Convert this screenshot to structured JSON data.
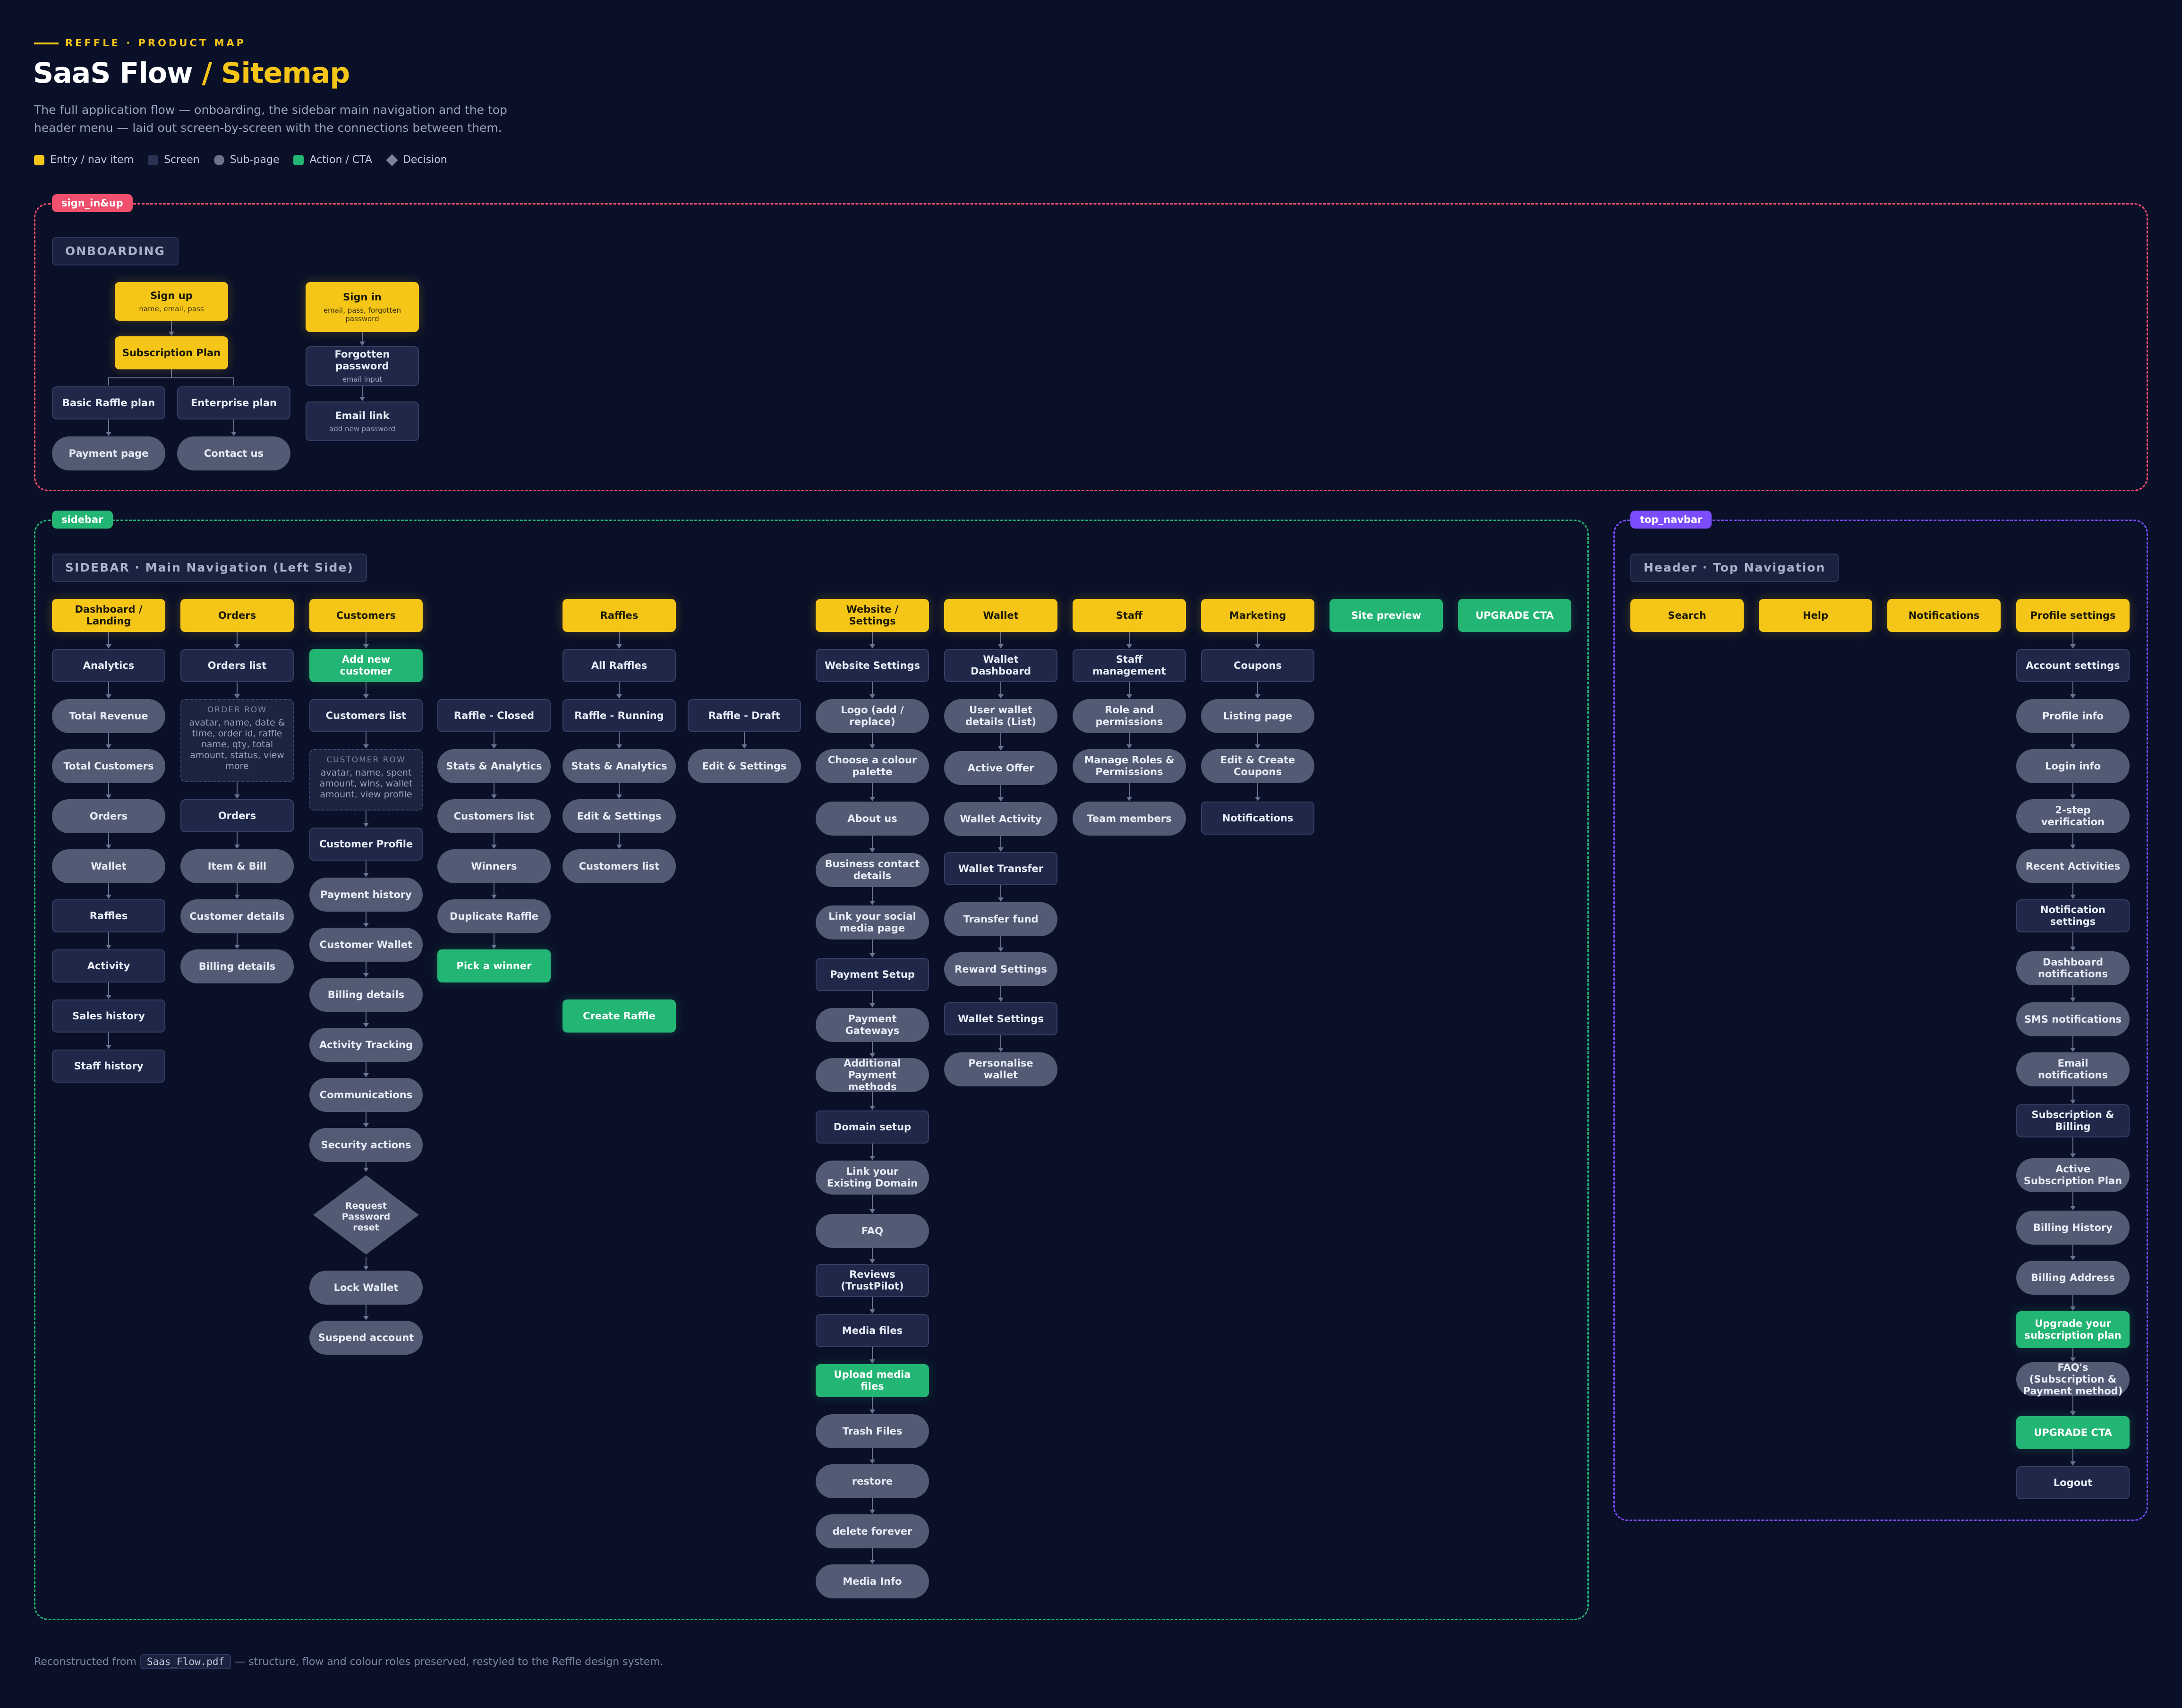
{
  "header": {
    "eyebrow": "REFFLE · PRODUCT MAP",
    "title_main": "SaaS Flow",
    "title_highlight": "/ Sitemap",
    "subtitle": "The full application flow — onboarding, the sidebar main navigation and the top header menu — laid out screen-by-screen with the connections between them."
  },
  "legend": [
    {
      "label": "Entry / nav item",
      "color": "#f5c518"
    },
    {
      "label": "Screen",
      "color": "#2a3354"
    },
    {
      "label": "Sub-page",
      "color": "#6b7289"
    },
    {
      "label": "Action / CTA",
      "color": "#22b573"
    },
    {
      "label": "Decision",
      "color": "#7d849a"
    }
  ],
  "regions": {
    "signin": {
      "tag": "sign_in&up",
      "color": "#f0506e",
      "section": "ONBOARDING"
    },
    "sidebar": {
      "tag": "sidebar",
      "color": "#22b573",
      "section": "SIDEBAR · Main Navigation (Left Side)"
    },
    "topnav": {
      "tag": "top_navbar",
      "color": "#7b4dff",
      "section": "Header · Top Navigation"
    }
  },
  "nodes": {
    "signup": {
      "label": "Sign up",
      "sub": "name, email, pass"
    },
    "subplan": {
      "label": "Subscription Plan"
    },
    "basic": {
      "label": "Basic Raffle plan"
    },
    "enterprise": {
      "label": "Enterprise plan"
    },
    "payment": {
      "label": "Payment page"
    },
    "contact": {
      "label": "Contact us"
    },
    "signin": {
      "label": "Sign in",
      "sub": "email, pass, forgotten password"
    },
    "forgot": {
      "label": "Forgotten password",
      "sub": "email input"
    },
    "emaillink": {
      "label": "Email link",
      "sub": "add new password"
    },
    "dash": {
      "label": "Dashboard / Landing"
    },
    "analytics": {
      "label": "Analytics"
    },
    "totrev": {
      "label": "Total Revenue"
    },
    "totcust": {
      "label": "Total Customers"
    },
    "d_orders": {
      "label": "Orders"
    },
    "d_wallet": {
      "label": "Wallet"
    },
    "d_raffles": {
      "label": "Raffles"
    },
    "d_activity": {
      "label": "Activity"
    },
    "sales": {
      "label": "Sales history"
    },
    "staffhist": {
      "label": "Staff history"
    },
    "orders": {
      "label": "Orders"
    },
    "orderslist": {
      "label": "Orders list"
    },
    "orderrow": {
      "label": "ORDER ROW",
      "sub": "avatar, name, date & time, order id, raffle name, qty, total amount, status, view more"
    },
    "o_orders": {
      "label": "Orders"
    },
    "itembill": {
      "label": "Item & Bill"
    },
    "custdetails": {
      "label": "Customer details"
    },
    "o_billing": {
      "label": "Billing details"
    },
    "customers": {
      "label": "Customers"
    },
    "addcust": {
      "label": "Add new customer"
    },
    "custlist": {
      "label": "Customers list"
    },
    "custrow": {
      "label": "CUSTOMER ROW",
      "sub": "avatar, name, spent amount, wins, wallet amount, view profile"
    },
    "custprofile": {
      "label": "Customer Profile"
    },
    "payhist": {
      "label": "Payment history"
    },
    "custwallet": {
      "label": "Customer Wallet"
    },
    "c_billing": {
      "label": "Billing details"
    },
    "acttrack": {
      "label": "Activity Tracking"
    },
    "comms": {
      "label": "Communications"
    },
    "security": {
      "label": "Security actions"
    },
    "pwreset": {
      "label": "Request Password reset"
    },
    "lockwallet": {
      "label": "Lock Wallet"
    },
    "suspend": {
      "label": "Suspend account"
    },
    "rclosed": {
      "label": "Raffle - Closed"
    },
    "rc_stats": {
      "label": "Stats & Analytics"
    },
    "rc_cust": {
      "label": "Customers list"
    },
    "winners": {
      "label": "Winners"
    },
    "duplicate": {
      "label": "Duplicate Raffle"
    },
    "pickwinner": {
      "label": "Pick a winner"
    },
    "raffles": {
      "label": "Raffles"
    },
    "allraffles": {
      "label": "All Raffles"
    },
    "rrunning": {
      "label": "Raffle - Running"
    },
    "rr_stats": {
      "label": "Stats & Analytics"
    },
    "rr_edit": {
      "label": "Edit & Settings"
    },
    "rr_cust": {
      "label": "Customers list"
    },
    "createraffle": {
      "label": "Create Raffle"
    },
    "rdraft": {
      "label": "Raffle - Draft"
    },
    "rd_edit": {
      "label": "Edit & Settings"
    },
    "website": {
      "label": "Website / Settings"
    },
    "websettings": {
      "label": "Website Settings"
    },
    "logo": {
      "label": "Logo (add / replace)"
    },
    "palette": {
      "label": "Choose a colour palette"
    },
    "about": {
      "label": "About us"
    },
    "bizcontact": {
      "label": "Business contact details"
    },
    "social": {
      "label": "Link your social media page"
    },
    "paysetup": {
      "label": "Payment Setup"
    },
    "paygw": {
      "label": "Payment Gateways"
    },
    "addpay": {
      "label": "Additional Payment methods"
    },
    "domain": {
      "label": "Domain setup"
    },
    "linkdomain": {
      "label": "Link your Existing Domain"
    },
    "faq": {
      "label": "FAQ"
    },
    "reviews": {
      "label": "Reviews (TrustPilot)"
    },
    "media": {
      "label": "Media files"
    },
    "upload": {
      "label": "Upload media files"
    },
    "trash": {
      "label": "Trash Files"
    },
    "restore": {
      "label": "restore"
    },
    "delete": {
      "label": "delete forever"
    },
    "mediainfo": {
      "label": "Media Info"
    },
    "wallet": {
      "label": "Wallet"
    },
    "walletdash": {
      "label": "Wallet Dashboard"
    },
    "userwallet": {
      "label": "User wallet details (List)"
    },
    "activeoffer": {
      "label": "Active Offer"
    },
    "walletact": {
      "label": "Wallet Activity"
    },
    "wallettransfer": {
      "label": "Wallet Transfer"
    },
    "transferfund": {
      "label": "Transfer fund"
    },
    "reward": {
      "label": "Reward Settings"
    },
    "walletsettings": {
      "label": "Wallet Settings"
    },
    "personalise": {
      "label": "Personalise wallet"
    },
    "staff": {
      "label": "Staff"
    },
    "staffmgmt": {
      "label": "Staff management"
    },
    "roleperm": {
      "label": "Role and permissions"
    },
    "manageroles": {
      "label": "Manage Roles & Permissions"
    },
    "team": {
      "label": "Team members"
    },
    "marketing": {
      "label": "Marketing"
    },
    "coupons": {
      "label": "Coupons"
    },
    "listing": {
      "label": "Listing page"
    },
    "editcoupons": {
      "label": "Edit & Create Coupons"
    },
    "m_notif": {
      "label": "Notifications"
    },
    "sitepreview": {
      "label": "Site preview"
    },
    "upgradecta": {
      "label": "UPGRADE CTA"
    },
    "search": {
      "label": "Search"
    },
    "help": {
      "label": "Help"
    },
    "notifications": {
      "label": "Notifications"
    },
    "profilesettings": {
      "label": "Profile settings"
    },
    "account": {
      "label": "Account settings"
    },
    "profileinfo": {
      "label": "Profile info"
    },
    "logininfo": {
      "label": "Login info"
    },
    "twostep": {
      "label": "2-step verification"
    },
    "recent": {
      "label": "Recent Activities"
    },
    "notifsettings": {
      "label": "Notification settings"
    },
    "dashnotif": {
      "label": "Dashboard notifications"
    },
    "smsnotif": {
      "label": "SMS notifications"
    },
    "emailnotif": {
      "label": "Email notifications"
    },
    "subbilling": {
      "label": "Subscription & Billing"
    },
    "activesub": {
      "label": "Active Subscription Plan"
    },
    "billhist": {
      "label": "Billing History"
    },
    "billaddr": {
      "label": "Billing Address"
    },
    "upgradeplan": {
      "label": "Upgrade your subscription plan"
    },
    "faqsub": {
      "label": "FAQ's (Subscription & Payment method)"
    },
    "p_upgrade": {
      "label": "UPGRADE CTA"
    },
    "logout": {
      "label": "Logout"
    }
  },
  "footer": {
    "prefix": "Reconstructed from",
    "file": "Saas_Flow.pdf",
    "suffix": "— structure, flow and colour roles preserved, restyled to the Reffle design system."
  }
}
